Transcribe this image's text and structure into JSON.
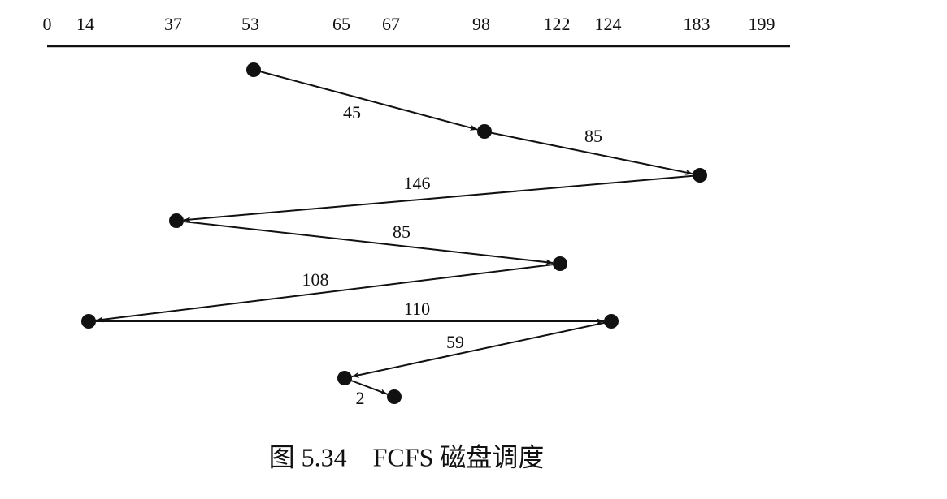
{
  "axis": {
    "ticks": [
      0,
      14,
      37,
      53,
      65,
      67,
      98,
      122,
      124,
      183,
      199
    ]
  },
  "path": {
    "cylinders": [
      53,
      98,
      183,
      37,
      122,
      14,
      124,
      65,
      67
    ],
    "distances": [
      45,
      85,
      146,
      85,
      108,
      110,
      59,
      2
    ]
  },
  "caption": "图 5.34　FCFS 磁盘调度"
}
